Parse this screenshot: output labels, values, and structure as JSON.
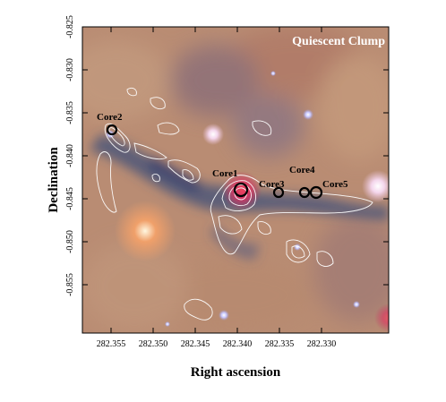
{
  "panel_title": "Quiescent Clump",
  "axes": {
    "xlabel": "Right ascension",
    "ylabel": "Declination",
    "x_ticks": [
      "282.355",
      "282.350",
      "282.345",
      "282.340",
      "282.335",
      "282.330"
    ],
    "y_ticks": [
      "-0.825",
      "-0.830",
      "-0.835",
      "-0.840",
      "-0.845",
      "-0.850",
      "-0.855"
    ]
  },
  "cores": [
    {
      "label": "Core1"
    },
    {
      "label": "Core2"
    },
    {
      "label": "Core3"
    },
    {
      "label": "Core4"
    },
    {
      "label": "Core5"
    }
  ],
  "colors": {
    "background": "#b58a73",
    "filament": "#3e4d78",
    "contour": "#ffffff",
    "core_marker": "#000000"
  }
}
